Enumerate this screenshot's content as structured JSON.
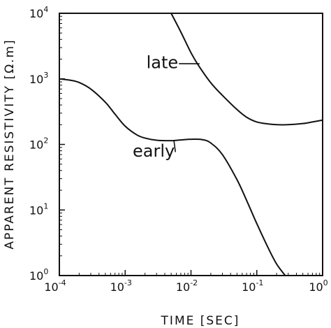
{
  "chart_data": {
    "type": "line",
    "title": "",
    "xlabel": "TIME  [SEC]",
    "ylabel": "APPARENT RESISTIVITY  [Ω.m]",
    "x_scale": "log",
    "y_scale": "log",
    "xlim": [
      0.0001,
      1
    ],
    "ylim": [
      1,
      10000
    ],
    "grid": false,
    "x_ticks": [
      {
        "value": 0.0001,
        "base": "10",
        "exp": "-4"
      },
      {
        "value": 0.001,
        "base": "10",
        "exp": "-3"
      },
      {
        "value": 0.01,
        "base": "10",
        "exp": "-2"
      },
      {
        "value": 0.1,
        "base": "10",
        "exp": "-1"
      },
      {
        "value": 1,
        "base": "10",
        "exp": "0"
      }
    ],
    "y_ticks": [
      {
        "value": 1,
        "base": "10",
        "exp": "0"
      },
      {
        "value": 10,
        "base": "10",
        "exp": "1"
      },
      {
        "value": 100,
        "base": "10",
        "exp": "2"
      },
      {
        "value": 1000,
        "base": "10",
        "exp": "3"
      },
      {
        "value": 10000,
        "base": "10",
        "exp": "4"
      }
    ],
    "series": [
      {
        "name": "early",
        "x": [
          0.0001,
          0.00015,
          0.0002,
          0.0003,
          0.0005,
          0.0007,
          0.001,
          0.0015,
          0.002,
          0.003,
          0.005,
          0.007,
          0.01,
          0.015,
          0.02,
          0.03,
          0.05,
          0.07,
          0.1,
          0.15,
          0.2,
          0.27
        ],
        "y": [
          1000,
          950,
          880,
          700,
          440,
          290,
          190,
          140,
          125,
          116,
          114,
          117,
          120,
          118,
          105,
          70,
          29,
          14,
          6.2,
          2.6,
          1.5,
          1
        ]
      },
      {
        "name": "late",
        "x": [
          0.005,
          0.007,
          0.01,
          0.013,
          0.02,
          0.03,
          0.05,
          0.07,
          0.1,
          0.15,
          0.2,
          0.3,
          0.5,
          0.7,
          1
        ],
        "y": [
          10000,
          5200,
          2500,
          1600,
          870,
          560,
          340,
          260,
          220,
          205,
          200,
          200,
          208,
          220,
          235
        ]
      }
    ],
    "annotations": [
      {
        "text": "late",
        "x": 0.0021,
        "y": 1450,
        "target_x": 0.0135,
        "target_y": 1700
      },
      {
        "text": "early",
        "x": 0.0013,
        "y": 65,
        "target_x": 0.0055,
        "target_y": 116
      }
    ]
  }
}
